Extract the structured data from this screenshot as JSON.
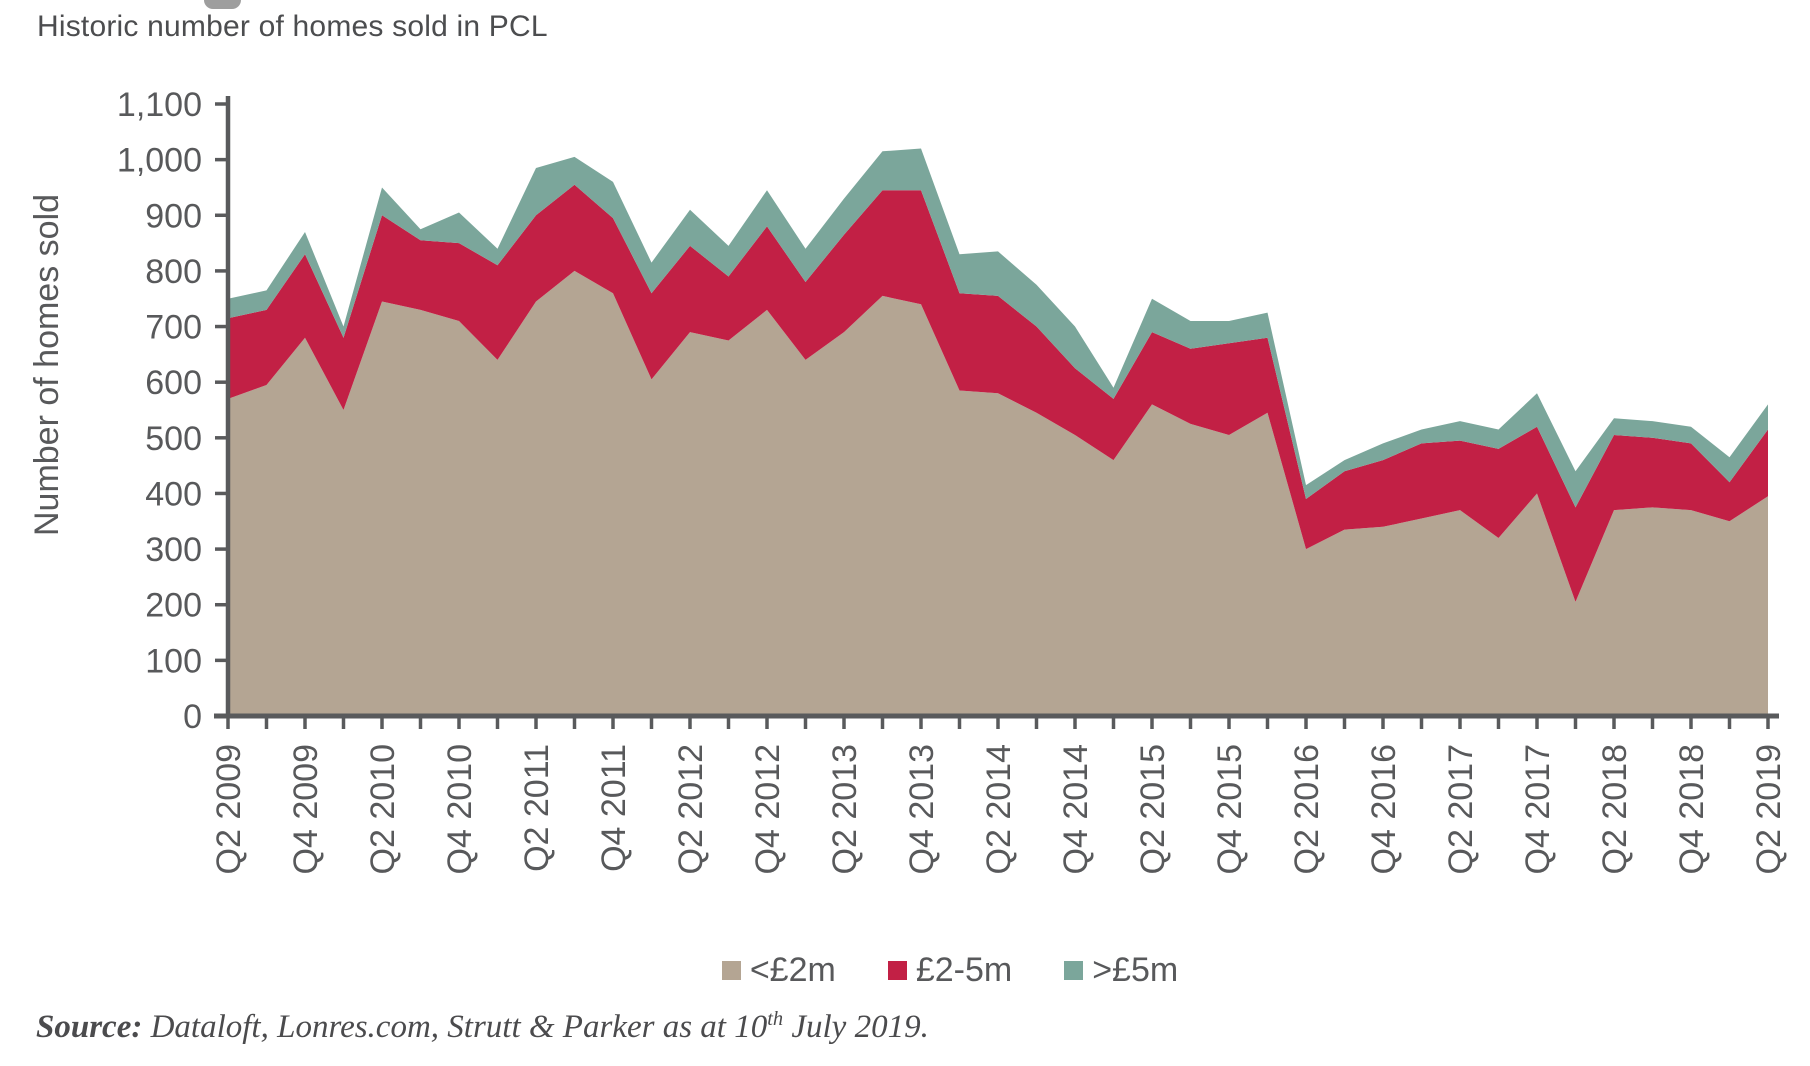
{
  "header": {
    "title": "Historic number of homes sold in PCL"
  },
  "y_axis": {
    "title": "Number of homes sold",
    "tick_labels": [
      "0",
      "100",
      "200",
      "300",
      "400",
      "500",
      "600",
      "700",
      "800",
      "900",
      "1,000",
      "1,100"
    ]
  },
  "source": {
    "label": "Source:",
    "before_sup": " Dataloft, Lonres.com, Strutt & Parker as at 10",
    "sup": "th",
    "after_sup": " July  2019."
  },
  "chart_data": {
    "type": "area",
    "stacked": true,
    "title": "Historic number of homes sold in PCL",
    "xlabel": "",
    "ylabel": "Number of homes sold",
    "ylim": [
      0,
      1100
    ],
    "grid": false,
    "legend_position": "bottom",
    "x_tick_label_every": 2,
    "axis_color": "#595a5c",
    "label_color": "#58595b",
    "categories": [
      "Q2 2009",
      "Q3 2009",
      "Q4 2009",
      "Q1 2010",
      "Q2 2010",
      "Q3 2010",
      "Q4 2010",
      "Q1 2011",
      "Q2 2011",
      "Q3 2011",
      "Q4 2011",
      "Q1 2012",
      "Q2 2012",
      "Q3 2012",
      "Q4 2012",
      "Q1 2013",
      "Q2 2013",
      "Q3 2013",
      "Q4 2013",
      "Q1 2014",
      "Q2 2014",
      "Q3 2014",
      "Q4 2014",
      "Q1 2015",
      "Q2 2015",
      "Q3 2015",
      "Q4 2015",
      "Q1 2016",
      "Q2 2016",
      "Q3 2016",
      "Q4 2016",
      "Q1 2017",
      "Q2 2017",
      "Q3 2017",
      "Q4 2017",
      "Q1 2018",
      "Q2 2018",
      "Q3 2018",
      "Q4 2018",
      "Q1 2019",
      "Q2 2019"
    ],
    "series": [
      {
        "name": "<£2m",
        "color": "#b4a593",
        "values": [
          570,
          595,
          680,
          550,
          745,
          730,
          710,
          640,
          745,
          800,
          760,
          605,
          690,
          675,
          730,
          640,
          690,
          755,
          740,
          585,
          580,
          545,
          505,
          460,
          560,
          525,
          505,
          545,
          300,
          335,
          340,
          355,
          370,
          320,
          400,
          205,
          370,
          375,
          370,
          350,
          395
        ]
      },
      {
        "name": "£2-5m",
        "color": "#c22045",
        "values": [
          145,
          135,
          150,
          130,
          155,
          125,
          140,
          170,
          155,
          155,
          135,
          155,
          155,
          115,
          150,
          140,
          175,
          190,
          205,
          175,
          175,
          155,
          120,
          110,
          130,
          135,
          165,
          135,
          90,
          105,
          120,
          135,
          125,
          160,
          120,
          170,
          135,
          125,
          120,
          70,
          120
        ]
      },
      {
        "name": ">£5m",
        "color": "#7ba69b",
        "values": [
          35,
          35,
          40,
          20,
          50,
          20,
          55,
          30,
          85,
          50,
          65,
          55,
          65,
          55,
          65,
          60,
          65,
          70,
          75,
          70,
          80,
          75,
          75,
          20,
          60,
          50,
          40,
          45,
          25,
          20,
          30,
          25,
          35,
          35,
          60,
          65,
          30,
          30,
          30,
          45,
          45
        ]
      }
    ]
  }
}
